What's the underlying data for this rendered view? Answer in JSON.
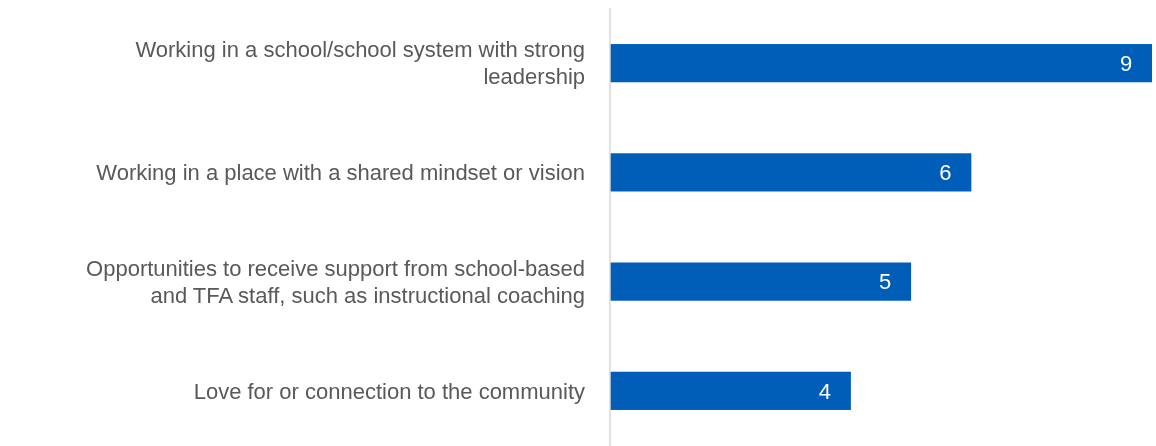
{
  "chart_data": {
    "type": "bar",
    "orientation": "horizontal",
    "categories": [
      "Working in a school/school system with strong leadership",
      "Working in a place with a shared mindset or vision",
      "Opportunities to receive support from school-based and TFA staff, such as instructional coaching",
      "Love for or connection to the community"
    ],
    "values": [
      9,
      6,
      5,
      4
    ],
    "color": "#005eb8",
    "data_labels": true
  }
}
